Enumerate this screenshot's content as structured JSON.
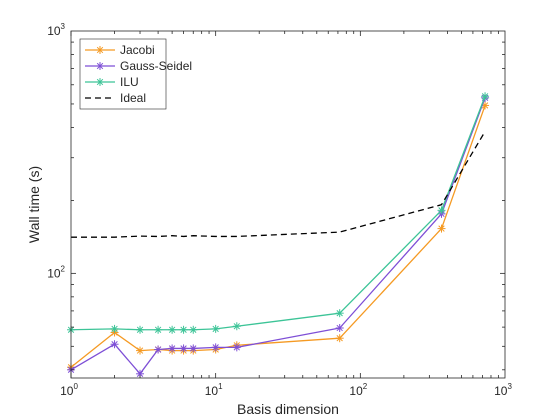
{
  "chart_data": {
    "type": "line",
    "xscale": "log",
    "yscale": "log",
    "xlim": [
      1,
      1000
    ],
    "ylim": [
      37,
      1000
    ],
    "xlabel": "Basis dimension",
    "ylabel": "Wall time (s)",
    "grid": false,
    "legend_position": "top-left",
    "x_ticks": [
      {
        "value": 1,
        "base": "10",
        "exp": "0"
      },
      {
        "value": 10,
        "base": "10",
        "exp": "1"
      },
      {
        "value": 100,
        "base": "10",
        "exp": "2"
      },
      {
        "value": 1000,
        "base": "10",
        "exp": "3"
      }
    ],
    "y_ticks": [
      {
        "value": 100,
        "base": "10",
        "exp": "2"
      },
      {
        "value": 1000,
        "base": "10",
        "exp": "3"
      }
    ],
    "series": [
      {
        "name": "Jacobi",
        "color": "#f59a23",
        "marker": "asterisk",
        "dashed": false,
        "x": [
          1,
          2,
          3,
          4,
          5,
          6,
          7,
          10,
          14,
          72,
          364,
          728
        ],
        "y": [
          41,
          57,
          48,
          48.5,
          48,
          48,
          48,
          48.5,
          50.5,
          54,
          153,
          493
        ]
      },
      {
        "name": "Gauss-Seidel",
        "color": "#7e4fd6",
        "marker": "asterisk",
        "dashed": false,
        "x": [
          1,
          2,
          3,
          4,
          5,
          6,
          7,
          10,
          14,
          72,
          364,
          728
        ],
        "y": [
          40,
          51,
          38.5,
          48.5,
          49,
          49,
          49,
          49.5,
          49.5,
          59.5,
          176,
          530
        ]
      },
      {
        "name": "ILU",
        "color": "#3cc497",
        "marker": "asterisk",
        "dashed": false,
        "x": [
          1,
          2,
          3,
          4,
          5,
          6,
          7,
          10,
          14,
          72,
          364,
          728
        ],
        "y": [
          58.5,
          59,
          58.5,
          58.5,
          58.5,
          58.5,
          58.5,
          59,
          60.5,
          68.5,
          182,
          538
        ]
      },
      {
        "name": "Ideal",
        "color": "#000000",
        "marker": "none",
        "dashed": true,
        "x": [
          1,
          2,
          3,
          4,
          5,
          6,
          7,
          10,
          14,
          72,
          364,
          728
        ],
        "y": [
          141,
          141,
          142.5,
          142,
          143,
          142,
          143,
          142,
          142,
          148,
          192,
          385
        ]
      }
    ]
  }
}
